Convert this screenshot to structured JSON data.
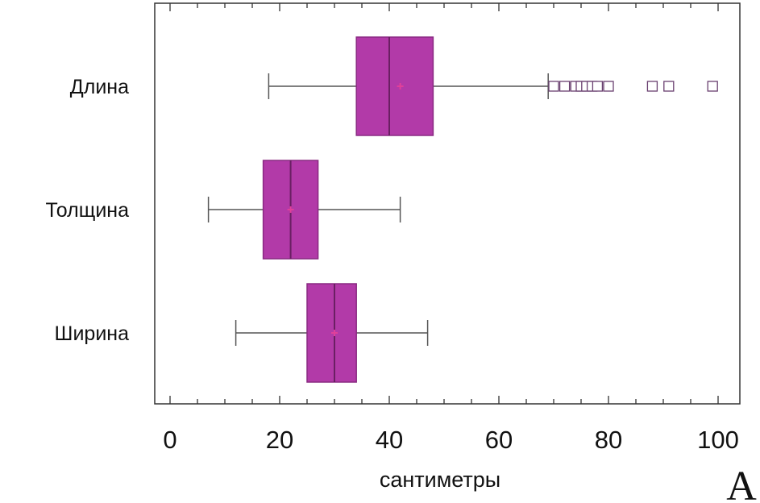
{
  "chart_data": {
    "type": "boxplot",
    "orientation": "horizontal",
    "xlabel": "сантиметры",
    "xlim": [
      -3,
      102
    ],
    "xticks": [
      0,
      20,
      40,
      60,
      80,
      100
    ],
    "panel_label": "A",
    "grid": false,
    "colors": {
      "box": "#b23aa8",
      "box_edge": "#8a2a82",
      "whisker": "#555555",
      "outlier": "#6a4070",
      "mean": "#e0409a"
    },
    "categories": [
      {
        "name": "Длина",
        "whisker_low": 18,
        "q1": 34,
        "median": 40,
        "q3": 48,
        "whisker_high": 69,
        "mean": 42,
        "outliers": [
          70,
          72,
          74,
          75,
          76,
          77,
          78,
          80,
          88,
          91,
          99
        ]
      },
      {
        "name": "Толщина",
        "whisker_low": 7,
        "q1": 17,
        "median": 22,
        "q3": 27,
        "whisker_high": 42,
        "mean": 22,
        "outliers": []
      },
      {
        "name": "Ширина",
        "whisker_low": 12,
        "q1": 25,
        "median": 30,
        "q3": 34,
        "whisker_high": 47,
        "mean": 30,
        "outliers": []
      }
    ]
  }
}
